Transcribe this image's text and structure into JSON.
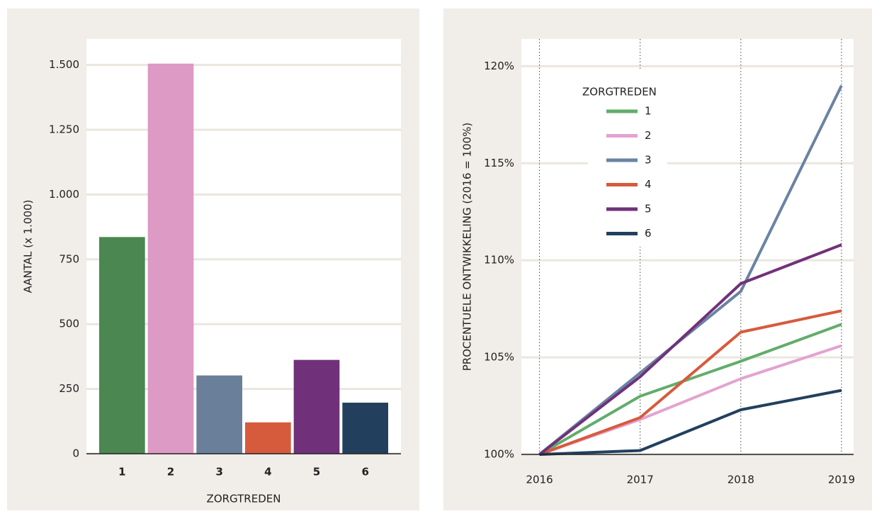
{
  "chart_data": [
    {
      "type": "bar",
      "xlabel": "ZORGTREDEN",
      "ylabel": "AANTAL (x 1.000)",
      "categories": [
        "1",
        "2",
        "3",
        "4",
        "5",
        "6"
      ],
      "values": [
        836,
        1505,
        302,
        121,
        362,
        197
      ],
      "colors": [
        "#4a8751",
        "#dc9ac4",
        "#6a7f99",
        "#d65b3d",
        "#71317a",
        "#22405e"
      ],
      "ylim": [
        0,
        1600
      ],
      "yticks": [
        0,
        250,
        500,
        750,
        {
          "value": 1000,
          "label": "1.000"
        },
        {
          "value": 1250,
          "label": "1.250"
        },
        {
          "value": 1500,
          "label": "1.500"
        }
      ],
      "grid": true
    },
    {
      "type": "line",
      "ylabel": "PROCENTUELE ONTWIKKELING (2016 = 100%)",
      "legend_title": "ZORGTREDEN",
      "x": [
        2016,
        2017,
        2018,
        2019
      ],
      "xlim": [
        2015.82,
        2019.12
      ],
      "xticks": [
        2016,
        2017,
        2018,
        2019
      ],
      "ylim": [
        100,
        121.4
      ],
      "yticks": [
        {
          "value": 100,
          "label": "100%"
        },
        {
          "value": 105,
          "label": "105%"
        },
        {
          "value": 110,
          "label": "110%"
        },
        {
          "value": 115,
          "label": "115%"
        },
        {
          "value": 120,
          "label": "120%"
        }
      ],
      "series": [
        {
          "name": "1",
          "color": "#62ad6b",
          "values": [
            100,
            103.0,
            104.8,
            106.7
          ]
        },
        {
          "name": "2",
          "color": "#e3a3d0",
          "values": [
            100,
            101.8,
            103.9,
            105.6
          ]
        },
        {
          "name": "3",
          "color": "#6a83a3",
          "values": [
            100,
            104.2,
            108.4,
            119.0
          ]
        },
        {
          "name": "4",
          "color": "#d65b3d",
          "values": [
            100,
            101.9,
            106.3,
            107.4
          ]
        },
        {
          "name": "5",
          "color": "#71317a",
          "values": [
            100,
            104.0,
            108.8,
            110.8
          ]
        },
        {
          "name": "6",
          "color": "#22405e",
          "values": [
            100,
            100.2,
            102.3,
            103.3
          ]
        }
      ],
      "grid": true,
      "legend": "top-left"
    }
  ]
}
